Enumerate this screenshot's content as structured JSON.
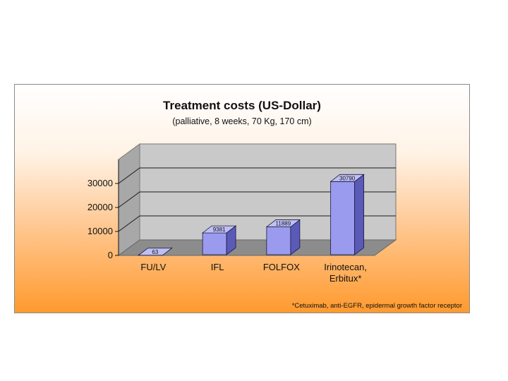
{
  "chart_data": {
    "type": "bar",
    "title": "Treatment costs (US-Dollar)",
    "subtitle": "(palliative, 8 weeks, 70 Kg, 170 cm)",
    "categories": [
      [
        "FU/LV"
      ],
      [
        "IFL"
      ],
      [
        "FOLFOX"
      ],
      [
        "Irinotecan,",
        "Erbitux*"
      ]
    ],
    "values": [
      63,
      9381,
      11889,
      30790
    ],
    "data_labels": [
      "63",
      "9381",
      "11889",
      "30790"
    ],
    "y_ticks": [
      0,
      10000,
      20000,
      30000
    ],
    "ylim": [
      0,
      40000
    ],
    "grid": true,
    "legend": false,
    "footnote": "*Cetuximab, anti-EGFR, epidermal growth factor receptor"
  },
  "colors": {
    "bar_front": "#9a9aee",
    "bar_top": "#bfbff7",
    "bar_side": "#5a5ab8",
    "bar_stroke": "#1a1a3a",
    "back_wall": "#c9c9c9",
    "side_wall": "#a8a8a8",
    "floor": "#8c8c8c",
    "gridline": "#1a1a1a",
    "background_top": "#ffffff",
    "background_bottom": "#ff9a2e"
  }
}
